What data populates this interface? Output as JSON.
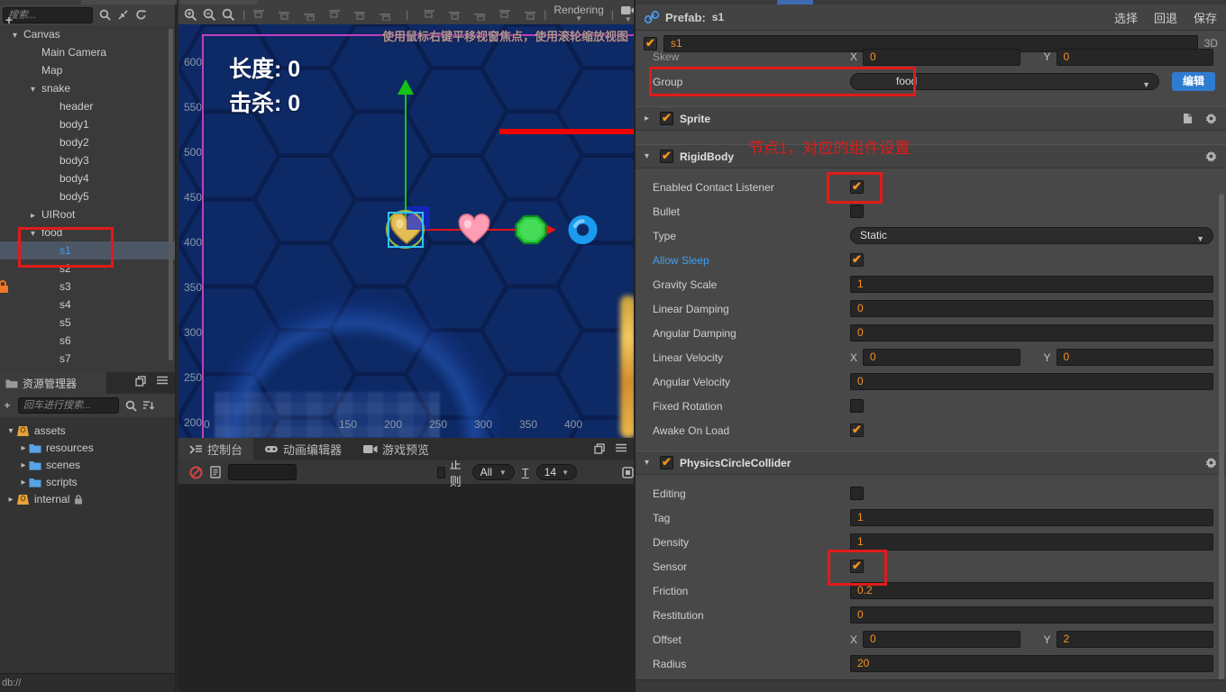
{
  "colors": {
    "accent_orange": "#f79220",
    "annotation_red": "#e01b1b",
    "select_blue": "#3f9ff2",
    "edit_btn_blue": "#2f7bd0"
  },
  "hierarchy": {
    "search_placeholder": "搜索...",
    "nodes": [
      {
        "label": "Canvas",
        "depth": 0,
        "arrow": "down"
      },
      {
        "label": "Main Camera",
        "depth": 1,
        "arrow": "none"
      },
      {
        "label": "Map",
        "depth": 1,
        "arrow": "none"
      },
      {
        "label": "snake",
        "depth": 1,
        "arrow": "down"
      },
      {
        "label": "header",
        "depth": 2,
        "arrow": "none"
      },
      {
        "label": "body1",
        "depth": 2,
        "arrow": "none"
      },
      {
        "label": "body2",
        "depth": 2,
        "arrow": "none"
      },
      {
        "label": "body3",
        "depth": 2,
        "arrow": "none"
      },
      {
        "label": "body4",
        "depth": 2,
        "arrow": "none"
      },
      {
        "label": "body5",
        "depth": 2,
        "arrow": "none"
      },
      {
        "label": "UIRoot",
        "depth": 1,
        "arrow": "right"
      },
      {
        "label": "food",
        "depth": 1,
        "arrow": "down"
      },
      {
        "label": "s1",
        "depth": 2,
        "arrow": "none",
        "selected": true
      },
      {
        "label": "s2",
        "depth": 2,
        "arrow": "none"
      },
      {
        "label": "s3",
        "depth": 2,
        "arrow": "none"
      },
      {
        "label": "s4",
        "depth": 2,
        "arrow": "none"
      },
      {
        "label": "s5",
        "depth": 2,
        "arrow": "none"
      },
      {
        "label": "s6",
        "depth": 2,
        "arrow": "none"
      },
      {
        "label": "s7",
        "depth": 2,
        "arrow": "none"
      }
    ]
  },
  "assets_panel": {
    "title": "资源管理器",
    "search_placeholder": "回车进行搜索...",
    "nodes": [
      {
        "label": "assets",
        "depth": 0,
        "arrow": "down",
        "icon": "bucket"
      },
      {
        "label": "resources",
        "depth": 1,
        "arrow": "right",
        "icon": "folder"
      },
      {
        "label": "scenes",
        "depth": 1,
        "arrow": "right",
        "icon": "folder"
      },
      {
        "label": "scripts",
        "depth": 1,
        "arrow": "right",
        "icon": "folder"
      },
      {
        "label": "internal",
        "depth": 0,
        "arrow": "right",
        "icon": "bucket",
        "locked": true
      }
    ],
    "status": "db://"
  },
  "scene": {
    "toolbar": {
      "rendering_label": "Rendering"
    },
    "hint": "使用鼠标右键平移视窗焦点，使用滚轮缩放视图",
    "hud": {
      "length_label": "长度: 0",
      "kill_label": "击杀: 0"
    },
    "ruler": {
      "left_ticks": [
        "600",
        "550",
        "500",
        "450",
        "400",
        "350",
        "300",
        "250",
        "200"
      ],
      "bottom_ticks": [
        "0",
        "150",
        "200",
        "250",
        "300",
        "350",
        "400"
      ]
    }
  },
  "console": {
    "tabs": [
      {
        "label": "控制台",
        "icon": "console-icon",
        "active": true
      },
      {
        "label": "动画编辑器",
        "icon": "animation-icon",
        "active": false
      },
      {
        "label": "游戏预览",
        "icon": "preview-icon",
        "active": false
      }
    ],
    "filter": {
      "regex_label": "正则",
      "level_value": "All",
      "font_size_value": "14"
    }
  },
  "inspector": {
    "header": {
      "prefab_label": "Prefab:",
      "prefab_name": "s1",
      "buttons": [
        "选择",
        "回退",
        "保存"
      ]
    },
    "node": {
      "name": "s1",
      "mode_label": "3D"
    },
    "skew_row": {
      "label": "Skew",
      "x": "0",
      "y": "0"
    },
    "group_row": {
      "label": "Group",
      "value": "food",
      "edit_button": "编辑"
    },
    "annotation": "节点1，对应的组件设置",
    "sections": [
      {
        "title": "Sprite",
        "collapsed": true,
        "has_doc_icon": true,
        "rows": []
      },
      {
        "title": "RigidBody",
        "collapsed": false,
        "rows": [
          {
            "label": "Enabled Contact Listener",
            "type": "checkbox",
            "checked": true,
            "red_box": "small"
          },
          {
            "label": "Bullet",
            "type": "checkbox",
            "checked": false
          },
          {
            "label": "Type",
            "type": "dropdown",
            "value": "Static"
          },
          {
            "label": "Allow Sleep",
            "type": "checkbox",
            "checked": true,
            "blue": true
          },
          {
            "label": "Gravity Scale",
            "type": "input",
            "value": "1"
          },
          {
            "label": "Linear Damping",
            "type": "input",
            "value": "0"
          },
          {
            "label": "Angular Damping",
            "type": "input",
            "value": "0"
          },
          {
            "label": "Linear Velocity",
            "type": "xy",
            "x": "0",
            "y": "0"
          },
          {
            "label": "Angular Velocity",
            "type": "input",
            "value": "0"
          },
          {
            "label": "Fixed Rotation",
            "type": "checkbox",
            "checked": false
          },
          {
            "label": "Awake On Load",
            "type": "checkbox",
            "checked": true
          }
        ]
      },
      {
        "title": "PhysicsCircleCollider",
        "collapsed": false,
        "rows": [
          {
            "label": "Editing",
            "type": "checkbox",
            "checked": false
          },
          {
            "label": "Tag",
            "type": "input",
            "value": "1"
          },
          {
            "label": "Density",
            "type": "input",
            "value": "1"
          },
          {
            "label": "Sensor",
            "type": "checkbox",
            "checked": true,
            "red_box": "big"
          },
          {
            "label": "Friction",
            "type": "input",
            "value": "0.2"
          },
          {
            "label": "Restitution",
            "type": "input",
            "value": "0"
          },
          {
            "label": "Offset",
            "type": "xy",
            "x": "0",
            "y": "2"
          },
          {
            "label": "Radius",
            "type": "input",
            "value": "20"
          }
        ]
      }
    ]
  }
}
